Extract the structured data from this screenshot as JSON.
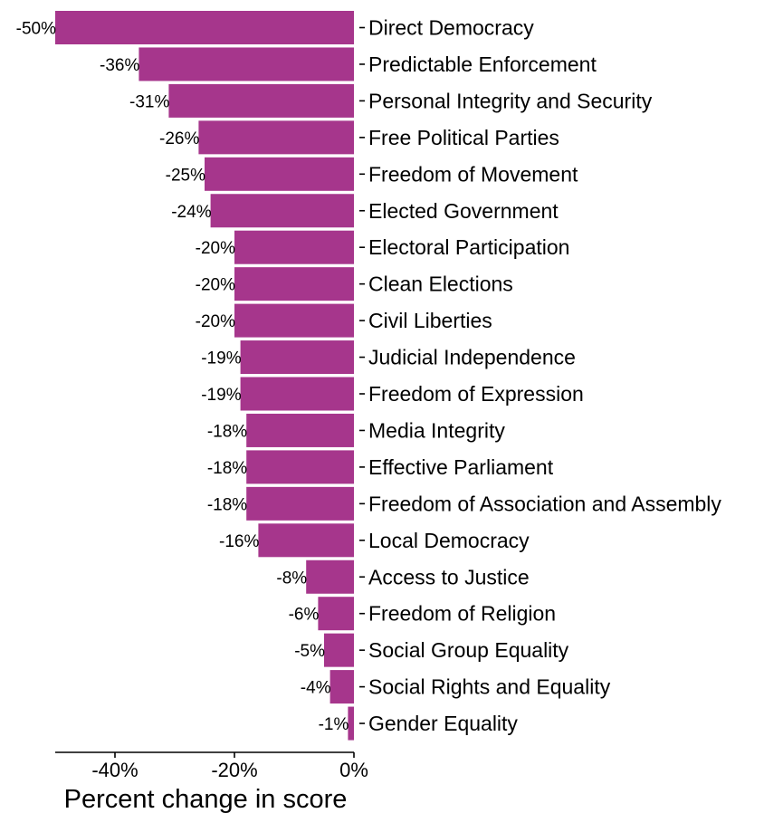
{
  "chart_data": {
    "type": "bar",
    "orientation": "horizontal",
    "categories": [
      "Direct Democracy",
      "Predictable Enforcement",
      "Personal Integrity and Security",
      "Free Political Parties",
      "Freedom of Movement",
      "Elected Government",
      "Electoral Participation",
      "Clean Elections",
      "Civil Liberties",
      "Judicial Independence",
      "Freedom of Expression",
      "Media Integrity",
      "Effective Parliament",
      "Freedom of Association and Assembly",
      "Local Democracy",
      "Access to Justice",
      "Freedom of Religion",
      "Social Group Equality",
      "Social Rights and Equality",
      "Gender Equality"
    ],
    "values": [
      -50,
      -36,
      -31,
      -26,
      -25,
      -24,
      -20,
      -20,
      -20,
      -19,
      -19,
      -18,
      -18,
      -18,
      -16,
      -8,
      -6,
      -5,
      -4,
      -1
    ],
    "value_labels": [
      "-50%",
      "-36%",
      "-31%",
      "-26%",
      "-25%",
      "-24%",
      "-20%",
      "-20%",
      "-20%",
      "-19%",
      "-19%",
      "-18%",
      "-18%",
      "-18%",
      "-16%",
      "-8%",
      "-6%",
      "-5%",
      "-4%",
      "-1%"
    ],
    "title": "",
    "xlabel": "Percent change in score",
    "ylabel": "",
    "xlim": [
      -50,
      0
    ],
    "xticks": [
      -40,
      -20,
      0
    ],
    "xtick_labels": [
      "-40%",
      "-20%",
      "0%"
    ],
    "grid": false,
    "legend": "none",
    "bar_color": "#A6368C"
  }
}
